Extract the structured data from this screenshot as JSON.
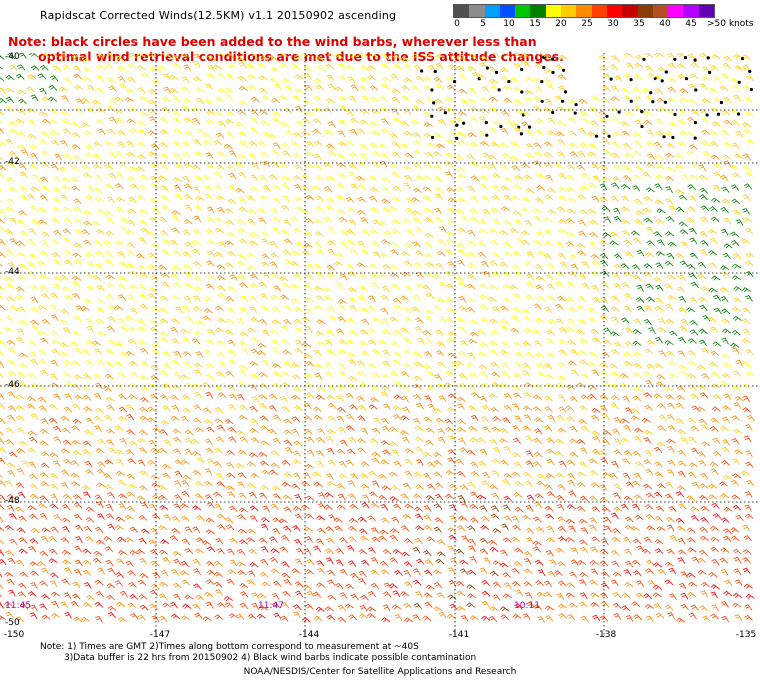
{
  "title": "Rapidscat Corrected Winds(12.5KM) v1.1 20150902 ascending",
  "note": {
    "line1": "Note: black circles have been added to the wind barbs, wherever less than",
    "line2": "optimal wind retrieval conditions are met due to the ISS attitude changes."
  },
  "legend": {
    "labels": [
      "0",
      "5",
      "10",
      "15",
      "20",
      "25",
      "30",
      "35",
      "40",
      "45",
      ">50 knots"
    ],
    "colors": [
      "#505050",
      "#8c8c8c",
      "#00a0ff",
      "#0050ff",
      "#00c800",
      "#008000",
      "#ffff00",
      "#ffcc00",
      "#ff8c00",
      "#ff4000",
      "#ff0000",
      "#c80000",
      "#8c3c00",
      "#b45028",
      "#ff00ff",
      "#b400ff",
      "#6400b4"
    ]
  },
  "latitudes": [
    "-40",
    "-42",
    "-44",
    "-46",
    "-48",
    "-50"
  ],
  "longitudes": [
    "-150",
    "-147",
    "-144",
    "-141",
    "-138",
    "-135"
  ],
  "timestamps": [
    "11:45",
    "11:47",
    "10:11"
  ],
  "footnote": {
    "line1": "Note: 1) Times are GMT 2)Times along bottom correspond to measurement at ~40S",
    "line2": "3)Data buffer is 22 hrs from 20150902 4) Black wind barbs indicate possible contamination"
  },
  "credit": "NOAA/NESDIS/Center for Satellite Applications and Research"
}
